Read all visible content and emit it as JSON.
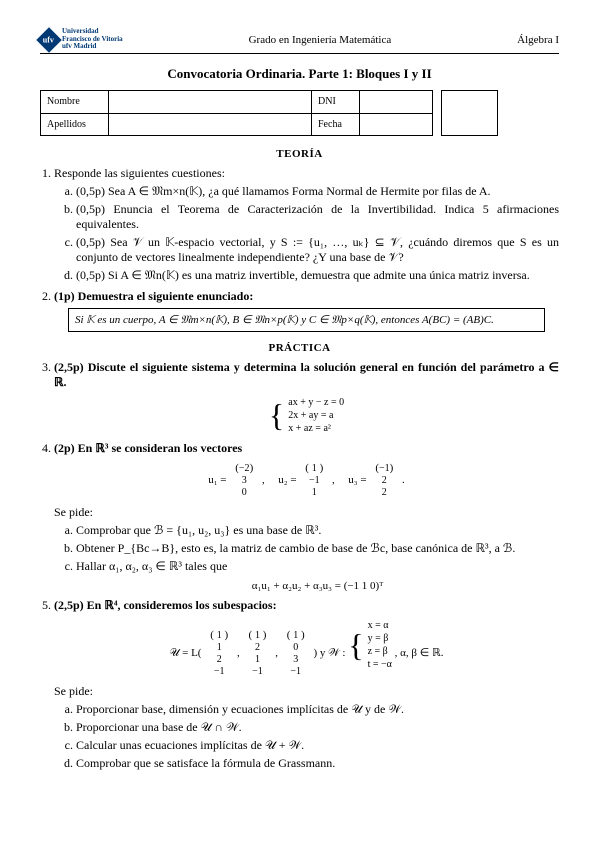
{
  "header": {
    "uni_line1": "Universidad",
    "uni_line2": "Francisco de Vitoria",
    "uni_line3": "ufv Madrid",
    "center": "Grado en Ingeniería Matemática",
    "right": "Álgebra I"
  },
  "exam_title": "Convocatoria Ordinaria. Parte 1: Bloques I y II",
  "info": {
    "nombre_label": "Nombre",
    "apellidos_label": "Apellidos",
    "dni_label": "DNI",
    "fecha_label": "Fecha"
  },
  "sections": {
    "teoria": "TEORÍA",
    "practica": "PRÁCTICA"
  },
  "q1": {
    "intro": "Responde las siguientes cuestiones:",
    "a": "(0,5p) Sea A ∈ 𝔐m×n(𝕂), ¿a qué llamamos Forma Normal de Hermite por filas de A.",
    "b": "(0,5p) Enuncia el Teorema de Caracterización de la Invertibilidad. Indica 5 afirmaciones equivalentes.",
    "c": "(0,5p) Sea 𝒱 un 𝕂-espacio vectorial, y S := {u₁, …, uₖ} ⊆ 𝒱, ¿cuándo diremos que S es un conjunto de vectores linealmente independiente? ¿Y una base de 𝒱?",
    "d": "(0,5p) Si A ∈ 𝔐n(𝕂) es una matriz invertible, demuestra que admite una única matriz inversa."
  },
  "q2": {
    "intro": "(1p) Demuestra el siguiente enunciado:",
    "box": "Si 𝕂 es un cuerpo, A ∈ 𝔐m×n(𝕂), B ∈ 𝔐n×p(𝕂) y C ∈ 𝔐p×q(𝕂), entonces A(BC) = (AB)C."
  },
  "q3": {
    "intro": "(2,5p) Discute el siguiente sistema y determina la solución general en función del parámetro a ∈ ℝ.",
    "r1": "ax   + y   − z   =   0",
    "r2": "2x  + ay           =   a",
    "r3": "x            + az   =   a²"
  },
  "q4": {
    "intro": "(2p) En ℝ³ se consideran los vectores",
    "vecs_label_u1": "u₁ =",
    "vecs_label_u2": "u₂ =",
    "vecs_label_u3": "u₃ =",
    "u1": [
      "−2",
      "3",
      "0"
    ],
    "u2": [
      "1",
      "−1",
      "1"
    ],
    "u3": [
      "−1",
      "2",
      "2"
    ],
    "sepide": "Se pide:",
    "a": "Comprobar que ℬ = {u₁, u₂, u₃} es una base de ℝ³.",
    "b": "Obtener P_{Bc→B}, esto es, la matriz de cambio de base de ℬc, base canónica de ℝ³, a ℬ.",
    "c": "Hallar α₁, α₂, α₃ ∈ ℝ³ tales que",
    "c_eq": "α₁u₁ + α₂u₂ + α₃u₃ = (−1   1   0)ᵀ"
  },
  "q5": {
    "intro": "(2,5p) En ℝ⁴, consideremos los subespacios:",
    "U_label": "𝒰 = L(",
    "v1": [
      "1",
      "1",
      "2",
      "−1"
    ],
    "v2": [
      "1",
      "2",
      "1",
      "−1"
    ],
    "v3": [
      "1",
      "0",
      "3",
      "−1"
    ],
    "W_label": "𝒲 :",
    "w_r1": "x   =   α",
    "w_r2": "y   =   β",
    "w_r3": "z   =   β",
    "w_r4": "t   =  −α",
    "cond": ",  α, β ∈ ℝ.",
    "close_paren": ")   y   ",
    "sepide": "Se pide:",
    "a": "Proporcionar base, dimensión y ecuaciones implícitas de 𝒰 y de 𝒲.",
    "b": "Proporcionar una base de 𝒰 ∩ 𝒲.",
    "c": "Calcular unas ecuaciones implícitas de 𝒰 + 𝒲.",
    "d": "Comprobar que se satisface la fórmula de Grassmann."
  }
}
